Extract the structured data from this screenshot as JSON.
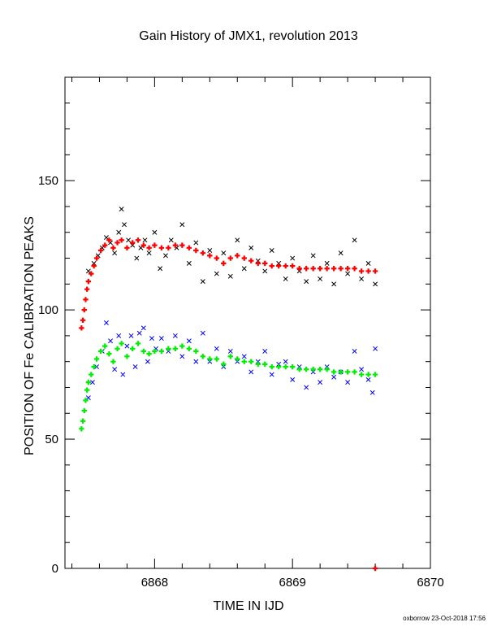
{
  "chart_data": {
    "type": "scatter",
    "title": "Gain History of JMX1, revolution 2013",
    "xlabel": "TIME IN IJD",
    "ylabel": "POSITION OF Fe CALIBRATION PEAKS",
    "xlim": [
      6867.35,
      6870
    ],
    "ylim": [
      0,
      190
    ],
    "x_ticks": [
      6868,
      6869,
      6870
    ],
    "y_ticks": [
      0,
      50,
      100,
      150
    ],
    "grid": false,
    "legend": "none",
    "colors": {
      "upper_raw": "#000000",
      "upper_fit": "#ff0000",
      "lower_raw": "#0000ff",
      "lower_fit": "#00ee00"
    },
    "series": [
      {
        "marker": "x",
        "color": "#000000",
        "points": [
          [
            6867.52,
            115
          ],
          [
            6867.56,
            118
          ],
          [
            6867.59,
            121
          ],
          [
            6867.62,
            124
          ],
          [
            6867.65,
            128
          ],
          [
            6867.68,
            126
          ],
          [
            6867.71,
            122
          ],
          [
            6867.74,
            130
          ],
          [
            6867.76,
            139
          ],
          [
            6867.78,
            133
          ],
          [
            6867.81,
            127
          ],
          [
            6867.84,
            125
          ],
          [
            6867.87,
            120
          ],
          [
            6867.9,
            124
          ],
          [
            6867.93,
            127
          ],
          [
            6867.96,
            122
          ],
          [
            6868.0,
            130
          ],
          [
            6868.04,
            116
          ],
          [
            6868.08,
            121
          ],
          [
            6868.12,
            127
          ],
          [
            6868.16,
            124
          ],
          [
            6868.2,
            133
          ],
          [
            6868.25,
            118
          ],
          [
            6868.3,
            126
          ],
          [
            6868.35,
            111
          ],
          [
            6868.4,
            123
          ],
          [
            6868.45,
            114
          ],
          [
            6868.5,
            122
          ],
          [
            6868.55,
            113
          ],
          [
            6868.6,
            127
          ],
          [
            6868.65,
            116
          ],
          [
            6868.7,
            124
          ],
          [
            6868.75,
            119
          ],
          [
            6868.8,
            115
          ],
          [
            6868.85,
            123
          ],
          [
            6868.9,
            118
          ],
          [
            6868.95,
            112
          ],
          [
            6869.0,
            120
          ],
          [
            6869.05,
            115
          ],
          [
            6869.1,
            111
          ],
          [
            6869.15,
            121
          ],
          [
            6869.2,
            112
          ],
          [
            6869.25,
            118
          ],
          [
            6869.3,
            110
          ],
          [
            6869.35,
            122
          ],
          [
            6869.4,
            114
          ],
          [
            6869.45,
            127
          ],
          [
            6869.5,
            112
          ],
          [
            6869.55,
            118
          ],
          [
            6869.6,
            110
          ]
        ]
      },
      {
        "marker": "+",
        "color": "#ff0000",
        "points": [
          [
            6867.47,
            93
          ],
          [
            6867.48,
            96
          ],
          [
            6867.49,
            100
          ],
          [
            6867.5,
            104
          ],
          [
            6867.51,
            108
          ],
          [
            6867.52,
            111
          ],
          [
            6867.54,
            114
          ],
          [
            6867.56,
            117
          ],
          [
            6867.58,
            120
          ],
          [
            6867.61,
            123
          ],
          [
            6867.64,
            125
          ],
          [
            6867.67,
            127
          ],
          [
            6867.7,
            124
          ],
          [
            6867.73,
            126
          ],
          [
            6867.76,
            127
          ],
          [
            6867.8,
            124
          ],
          [
            6867.84,
            126
          ],
          [
            6867.88,
            127
          ],
          [
            6867.92,
            125
          ],
          [
            6867.96,
            124
          ],
          [
            6868.0,
            125
          ],
          [
            6868.05,
            124
          ],
          [
            6868.1,
            124
          ],
          [
            6868.15,
            125
          ],
          [
            6868.2,
            125
          ],
          [
            6868.25,
            124
          ],
          [
            6868.3,
            123
          ],
          [
            6868.35,
            122
          ],
          [
            6868.4,
            121
          ],
          [
            6868.45,
            120
          ],
          [
            6868.5,
            118
          ],
          [
            6868.55,
            120
          ],
          [
            6868.6,
            121
          ],
          [
            6868.65,
            120
          ],
          [
            6868.7,
            119
          ],
          [
            6868.75,
            118
          ],
          [
            6868.8,
            118
          ],
          [
            6868.85,
            117
          ],
          [
            6868.9,
            117
          ],
          [
            6868.95,
            117
          ],
          [
            6869.0,
            117
          ],
          [
            6869.05,
            116
          ],
          [
            6869.1,
            116
          ],
          [
            6869.15,
            116
          ],
          [
            6869.2,
            116
          ],
          [
            6869.25,
            116
          ],
          [
            6869.3,
            116
          ],
          [
            6869.35,
            116
          ],
          [
            6869.4,
            116
          ],
          [
            6869.45,
            116
          ],
          [
            6869.5,
            115
          ],
          [
            6869.55,
            115
          ],
          [
            6869.6,
            115
          ],
          [
            6869.6,
            0
          ]
        ]
      },
      {
        "marker": "x",
        "color": "#0000ff",
        "points": [
          [
            6867.52,
            66
          ],
          [
            6867.55,
            72
          ],
          [
            6867.58,
            78
          ],
          [
            6867.62,
            84
          ],
          [
            6867.65,
            95
          ],
          [
            6867.68,
            88
          ],
          [
            6867.71,
            77
          ],
          [
            6867.74,
            90
          ],
          [
            6867.77,
            75
          ],
          [
            6867.8,
            86
          ],
          [
            6867.83,
            90
          ],
          [
            6867.86,
            78
          ],
          [
            6867.89,
            91
          ],
          [
            6867.92,
            93
          ],
          [
            6867.95,
            80
          ],
          [
            6867.98,
            89
          ],
          [
            6868.01,
            85
          ],
          [
            6868.05,
            89
          ],
          [
            6868.1,
            84
          ],
          [
            6868.15,
            90
          ],
          [
            6868.2,
            82
          ],
          [
            6868.25,
            88
          ],
          [
            6868.3,
            80
          ],
          [
            6868.35,
            91
          ],
          [
            6868.4,
            80
          ],
          [
            6868.45,
            85
          ],
          [
            6868.5,
            78
          ],
          [
            6868.55,
            84
          ],
          [
            6868.6,
            80
          ],
          [
            6868.65,
            82
          ],
          [
            6868.7,
            76
          ],
          [
            6868.75,
            80
          ],
          [
            6868.8,
            84
          ],
          [
            6868.85,
            75
          ],
          [
            6868.9,
            79
          ],
          [
            6868.95,
            80
          ],
          [
            6869.0,
            73
          ],
          [
            6869.05,
            78
          ],
          [
            6869.1,
            70
          ],
          [
            6869.15,
            76
          ],
          [
            6869.2,
            72
          ],
          [
            6869.25,
            78
          ],
          [
            6869.3,
            74
          ],
          [
            6869.35,
            76
          ],
          [
            6869.4,
            72
          ],
          [
            6869.45,
            84
          ],
          [
            6869.5,
            77
          ],
          [
            6869.55,
            73
          ],
          [
            6869.58,
            68
          ],
          [
            6869.6,
            85
          ]
        ]
      },
      {
        "marker": "+",
        "color": "#00ee00",
        "points": [
          [
            6867.47,
            54
          ],
          [
            6867.48,
            57
          ],
          [
            6867.49,
            61
          ],
          [
            6867.5,
            65
          ],
          [
            6867.51,
            69
          ],
          [
            6867.52,
            72
          ],
          [
            6867.54,
            75
          ],
          [
            6867.56,
            78
          ],
          [
            6867.58,
            81
          ],
          [
            6867.61,
            84
          ],
          [
            6867.64,
            86
          ],
          [
            6867.67,
            83
          ],
          [
            6867.7,
            80
          ],
          [
            6867.73,
            85
          ],
          [
            6867.76,
            87
          ],
          [
            6867.8,
            82
          ],
          [
            6867.84,
            85
          ],
          [
            6867.88,
            87
          ],
          [
            6867.92,
            84
          ],
          [
            6867.96,
            83
          ],
          [
            6868.0,
            84
          ],
          [
            6868.05,
            84
          ],
          [
            6868.1,
            85
          ],
          [
            6868.15,
            85
          ],
          [
            6868.2,
            86
          ],
          [
            6868.25,
            85
          ],
          [
            6868.3,
            84
          ],
          [
            6868.35,
            82
          ],
          [
            6868.4,
            81
          ],
          [
            6868.45,
            81
          ],
          [
            6868.5,
            79
          ],
          [
            6868.55,
            82
          ],
          [
            6868.6,
            81
          ],
          [
            6868.65,
            80
          ],
          [
            6868.7,
            80
          ],
          [
            6868.75,
            79
          ],
          [
            6868.8,
            79
          ],
          [
            6868.85,
            78
          ],
          [
            6868.9,
            78
          ],
          [
            6868.95,
            78
          ],
          [
            6869.0,
            78
          ],
          [
            6869.05,
            77
          ],
          [
            6869.1,
            77
          ],
          [
            6869.15,
            77
          ],
          [
            6869.2,
            77
          ],
          [
            6869.25,
            77
          ],
          [
            6869.3,
            76
          ],
          [
            6869.35,
            76
          ],
          [
            6869.4,
            76
          ],
          [
            6869.45,
            76
          ],
          [
            6869.5,
            75
          ],
          [
            6869.55,
            75
          ],
          [
            6869.6,
            75
          ]
        ]
      }
    ]
  },
  "footer": "oxborrow 23-Oct-2018 17:56"
}
